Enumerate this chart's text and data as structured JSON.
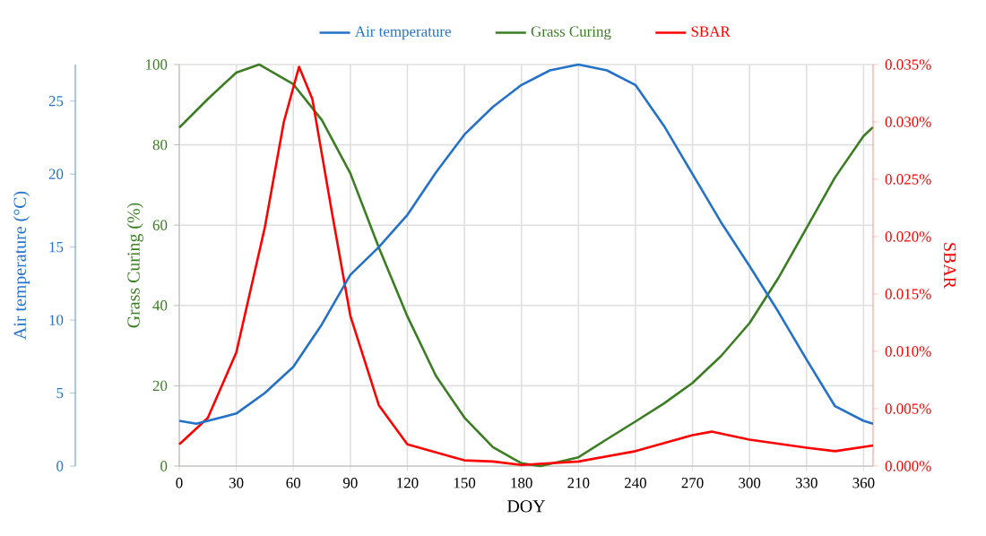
{
  "chart_data": {
    "type": "line",
    "xlabel": "DOY",
    "ylabel": "Grass Curing (%)",
    "y2label": "SBAR",
    "y3label": "Air temperature (°C)",
    "xlim": [
      0,
      365
    ],
    "xticks": [
      0,
      30,
      60,
      90,
      120,
      150,
      180,
      210,
      240,
      270,
      300,
      330,
      360
    ],
    "ylim": [
      0,
      100
    ],
    "yticks": [
      0,
      20,
      40,
      60,
      80,
      100
    ],
    "y2lim": [
      0,
      0.035
    ],
    "y2ticks": [
      {
        "value": 0,
        "label": "0.000%"
      },
      {
        "value": 0.005,
        "label": "0.005%"
      },
      {
        "value": 0.01,
        "label": "0.010%"
      },
      {
        "value": 0.015,
        "label": "0.015%"
      },
      {
        "value": 0.02,
        "label": "0.020%"
      },
      {
        "value": 0.025,
        "label": "0.025%"
      },
      {
        "value": 0.03,
        "label": "0.030%"
      },
      {
        "value": 0.035,
        "label": "0.035%"
      }
    ],
    "y3lim": [
      0,
      27.5
    ],
    "y3ticks": [
      0,
      5,
      10,
      15,
      20,
      25
    ],
    "grid": true,
    "legend": "top",
    "marker": "none",
    "line_style": "solid",
    "series": [
      {
        "name": "Air temperature",
        "color": "#2471c8",
        "axis": "y3",
        "x": [
          0,
          9,
          30,
          45,
          60,
          75,
          90,
          105,
          120,
          135,
          150,
          165,
          180,
          195,
          210,
          225,
          240,
          255,
          270,
          285,
          300,
          315,
          330,
          345,
          360,
          365
        ],
        "values": [
          3.1,
          2.9,
          3.6,
          5.0,
          6.8,
          9.7,
          13.1,
          15.0,
          17.2,
          20.1,
          22.7,
          24.6,
          26.1,
          27.1,
          27.5,
          27.1,
          26.1,
          23.3,
          20.0,
          16.7,
          13.7,
          10.6,
          7.3,
          4.1,
          3.1,
          2.9
        ]
      },
      {
        "name": "Grass Curing",
        "color": "#3b7d23",
        "axis": "y",
        "x": [
          0,
          15,
          30,
          42,
          60,
          75,
          90,
          105,
          120,
          135,
          150,
          165,
          180,
          190,
          210,
          225,
          240,
          255,
          270,
          285,
          300,
          315,
          330,
          345,
          360,
          365
        ],
        "values": [
          84.3,
          91.4,
          98,
          100,
          95.1,
          86.2,
          72.9,
          54.4,
          37.3,
          22.5,
          12.1,
          4.7,
          0.7,
          0,
          2.2,
          6.7,
          11.1,
          15.6,
          20.7,
          27.4,
          35.6,
          46.7,
          59.3,
          71.9,
          82.2,
          84.4
        ]
      },
      {
        "name": "SBAR",
        "color": "#ff0000",
        "axis": "y2",
        "x": [
          0,
          15,
          30,
          45,
          55,
          63,
          70,
          80,
          90,
          105,
          120,
          150,
          165,
          180,
          210,
          240,
          270,
          280,
          300,
          330,
          345,
          365
        ],
        "values": [
          0.0019,
          0.0042,
          0.0099,
          0.0208,
          0.03,
          0.0348,
          0.032,
          0.0224,
          0.0131,
          0.0053,
          0.0019,
          0.0005,
          0.0004,
          0.0001,
          0.0004,
          0.0013,
          0.0027,
          0.003,
          0.0023,
          0.0016,
          0.0013,
          0.0018
        ]
      }
    ]
  }
}
